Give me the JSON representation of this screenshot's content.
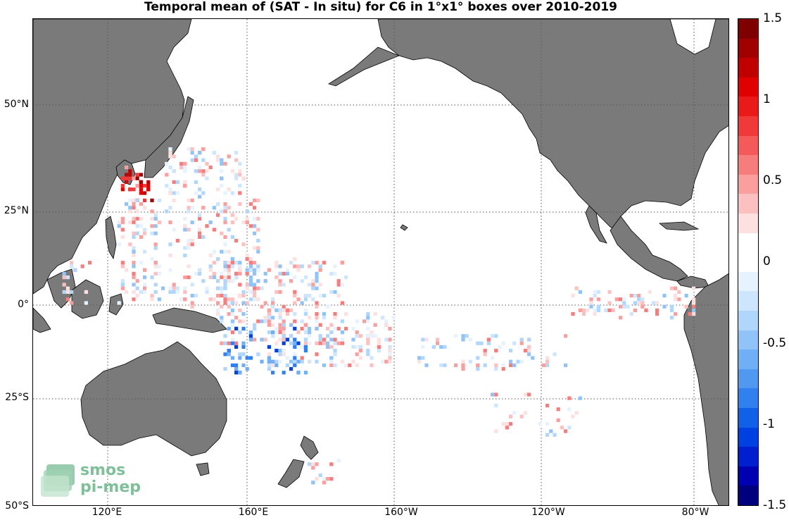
{
  "title": "Temporal mean of (SAT - In situ) for C6 in 1°x1° boxes over 2010-2019",
  "lat_ticks": [
    "50°N",
    "25°N",
    "0°",
    "25°S",
    "50°S"
  ],
  "lon_ticks": [
    "120°E",
    "160°E",
    "160°W",
    "120°W",
    "80°W"
  ],
  "colorbar": {
    "ticks": [
      "1.5",
      "1",
      "0.5",
      "0",
      "-0.5",
      "-1",
      "-1.5"
    ],
    "min": -1.5,
    "max": 1.5,
    "colors": [
      "#00007f",
      "#0000b0",
      "#0020d0",
      "#0040e0",
      "#1060e8",
      "#3080f0",
      "#5098f0",
      "#70aff5",
      "#90c4f8",
      "#b0d6fb",
      "#cde6fd",
      "#e6f2fe",
      "#ffffff",
      "#ffffff",
      "#fde0e0",
      "#fcc0c0",
      "#fa9e9e",
      "#f77c7c",
      "#f45a5a",
      "#f03a3a",
      "#ea1a1a",
      "#e00000",
      "#c00000",
      "#a00000",
      "#7f0000"
    ]
  },
  "logo": {
    "line1": "smos",
    "line2": "pi-mep"
  },
  "colors": {
    "land": "#7a7a7a",
    "ocean": "#ffffff",
    "grid": "#555555"
  }
}
